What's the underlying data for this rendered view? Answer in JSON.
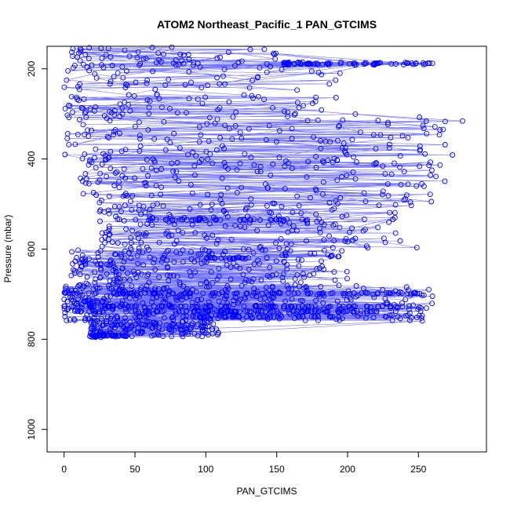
{
  "chart_data": {
    "type": "scatter",
    "title": "ATOM2 Northeast_Pacific_1 PAN_GTCIMS",
    "xlabel": "PAN_GTCIMS",
    "ylabel": "Pressure (mbar)",
    "xlim": [
      -12,
      298
    ],
    "ylim": [
      1050,
      150
    ],
    "y_reversed": true,
    "x_ticks": [
      0,
      50,
      100,
      150,
      200,
      250
    ],
    "y_ticks": [
      200,
      400,
      600,
      800,
      1000
    ],
    "grid": false,
    "legend": "none",
    "series": [
      {
        "color": "#0000ff",
        "marker": "open-circle",
        "style": "points-connected-by-lines",
        "bands": [
          {
            "pmin": 152,
            "pmax": 200,
            "xmin": 5,
            "xmax": 150,
            "n": 70
          },
          {
            "pmin": 185,
            "pmax": 192,
            "xmin": 155,
            "xmax": 262,
            "n": 45
          },
          {
            "pmin": 200,
            "pmax": 300,
            "xmin": 0,
            "xmax": 200,
            "n": 110
          },
          {
            "pmin": 300,
            "pmax": 400,
            "xmin": 0,
            "xmax": 285,
            "n": 140
          },
          {
            "pmin": 400,
            "pmax": 500,
            "xmin": 10,
            "xmax": 270,
            "n": 160
          },
          {
            "pmin": 500,
            "pmax": 600,
            "xmin": 25,
            "xmax": 250,
            "n": 180
          },
          {
            "pmin": 600,
            "pmax": 680,
            "xmin": 5,
            "xmax": 200,
            "n": 220
          },
          {
            "pmin": 680,
            "pmax": 760,
            "xmin": 0,
            "xmax": 260,
            "n": 420
          },
          {
            "pmin": 760,
            "pmax": 796,
            "xmin": 18,
            "xmax": 110,
            "n": 170
          }
        ],
        "dense_rows": [
          {
            "p": 698,
            "xmin": 0,
            "xmax": 258,
            "n": 90
          },
          {
            "p": 727,
            "xmin": 0,
            "xmax": 240,
            "n": 80
          },
          {
            "p": 738,
            "xmin": 0,
            "xmax": 230,
            "n": 90
          },
          {
            "p": 750,
            "xmin": 30,
            "xmax": 190,
            "n": 50
          },
          {
            "p": 792,
            "xmin": 20,
            "xmax": 45,
            "n": 30
          },
          {
            "p": 535,
            "xmin": 50,
            "xmax": 170,
            "n": 40
          },
          {
            "p": 620,
            "xmin": 100,
            "xmax": 130,
            "n": 20
          },
          {
            "p": 188,
            "xmin": 155,
            "xmax": 262,
            "n": 30
          }
        ]
      }
    ]
  }
}
